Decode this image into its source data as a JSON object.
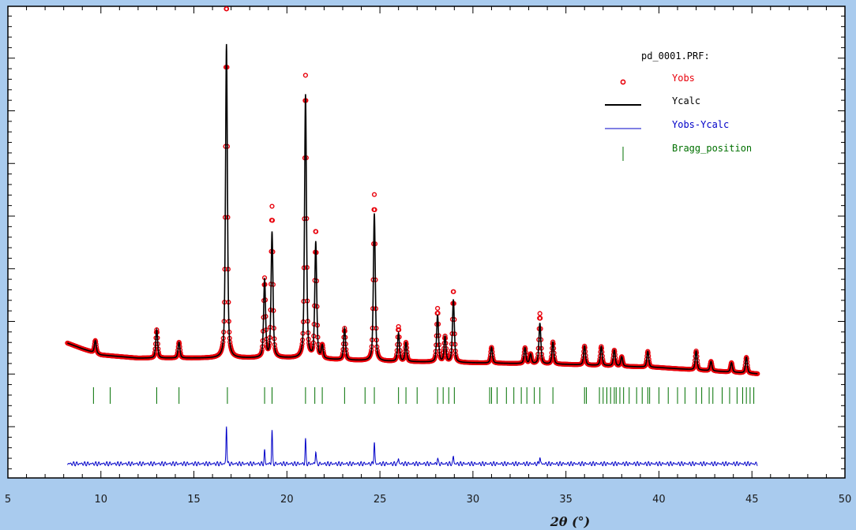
{
  "chart_data": {
    "type": "line",
    "title": "",
    "file_label": "pd_0001.PRF:",
    "xlabel": "2θ (°)",
    "ylabel": "",
    "xlim": [
      5,
      50
    ],
    "x_ticks": [
      "5",
      "10",
      "15",
      "20",
      "25",
      "30",
      "35",
      "40",
      "45",
      "50"
    ],
    "grid": false,
    "legend_placement": "top-right",
    "legend": [
      {
        "key": "obs",
        "label": "Yobs",
        "color": "#e8000b"
      },
      {
        "key": "calc",
        "label": "Ycalc",
        "color": "#000000"
      },
      {
        "key": "diff",
        "label": "Yobs-Ycalc",
        "color": "#0000c8"
      },
      {
        "key": "bragg",
        "label": "Bragg_position",
        "color": "#007000"
      }
    ],
    "background": {
      "start_x": 8.2,
      "end_x": 45.3,
      "points": [
        [
          8.2,
          0.098
        ],
        [
          9.0,
          0.08
        ],
        [
          10.0,
          0.06
        ],
        [
          12.0,
          0.05
        ],
        [
          16.0,
          0.05
        ],
        [
          20.0,
          0.05
        ],
        [
          25.0,
          0.04
        ],
        [
          30.0,
          0.035
        ],
        [
          35.0,
          0.03
        ],
        [
          40.0,
          0.02
        ],
        [
          45.3,
          0.0
        ]
      ]
    },
    "peaks": [
      {
        "x": 9.7,
        "height": 0.04
      },
      {
        "x": 13.0,
        "height": 0.09
      },
      {
        "x": 14.2,
        "height": 0.05
      },
      {
        "x": 16.75,
        "height": 1.0
      },
      {
        "x": 18.8,
        "height": 0.25
      },
      {
        "x": 19.2,
        "height": 0.4
      },
      {
        "x": 21.0,
        "height": 0.84
      },
      {
        "x": 21.55,
        "height": 0.37
      },
      {
        "x": 21.9,
        "height": 0.04
      },
      {
        "x": 23.1,
        "height": 0.1
      },
      {
        "x": 24.7,
        "height": 0.47
      },
      {
        "x": 26.0,
        "height": 0.09
      },
      {
        "x": 26.4,
        "height": 0.06
      },
      {
        "x": 28.1,
        "height": 0.15
      },
      {
        "x": 28.5,
        "height": 0.08
      },
      {
        "x": 28.95,
        "height": 0.2
      },
      {
        "x": 31.0,
        "height": 0.05
      },
      {
        "x": 32.8,
        "height": 0.05
      },
      {
        "x": 33.1,
        "height": 0.03
      },
      {
        "x": 33.6,
        "height": 0.13
      },
      {
        "x": 34.3,
        "height": 0.07
      },
      {
        "x": 36.0,
        "height": 0.06
      },
      {
        "x": 36.9,
        "height": 0.06
      },
      {
        "x": 37.6,
        "height": 0.05
      },
      {
        "x": 38.0,
        "height": 0.03
      },
      {
        "x": 39.4,
        "height": 0.05
      },
      {
        "x": 42.0,
        "height": 0.06
      },
      {
        "x": 42.8,
        "height": 0.03
      },
      {
        "x": 43.9,
        "height": 0.03
      },
      {
        "x": 44.7,
        "height": 0.05
      }
    ],
    "observed_excess": [
      {
        "x": 16.75,
        "extra": 0.14
      },
      {
        "x": 19.2,
        "extra": 0.08
      },
      {
        "x": 21.0,
        "extra": 0.06
      },
      {
        "x": 21.55,
        "extra": 0.04
      },
      {
        "x": 24.7,
        "extra": 0.06
      },
      {
        "x": 26.0,
        "extra": 0.02
      },
      {
        "x": 28.1,
        "extra": 0.02
      },
      {
        "x": 28.95,
        "extra": 0.03
      },
      {
        "x": 33.6,
        "extra": 0.03
      }
    ],
    "bragg_positions": [
      9.6,
      10.5,
      13.0,
      14.2,
      16.8,
      18.8,
      19.2,
      21.0,
      21.5,
      21.9,
      23.1,
      24.2,
      24.7,
      26.0,
      26.4,
      27.0,
      28.1,
      28.4,
      28.7,
      29.0,
      30.9,
      31.0,
      31.3,
      31.8,
      32.2,
      32.6,
      32.9,
      33.3,
      33.6,
      34.3,
      36.0,
      36.1,
      36.8,
      37.0,
      37.2,
      37.4,
      37.6,
      37.7,
      37.9,
      38.1,
      38.4,
      38.8,
      39.1,
      39.4,
      39.5,
      40.0,
      40.5,
      41.0,
      41.4,
      42.0,
      42.3,
      42.7,
      42.9,
      43.4,
      43.8,
      44.2,
      44.5,
      44.7,
      44.9,
      45.1
    ],
    "difference_peaks": [
      {
        "x": 16.75,
        "amp": 0.21
      },
      {
        "x": 18.8,
        "amp": 0.07
      },
      {
        "x": 19.2,
        "amp": 0.18
      },
      {
        "x": 21.0,
        "amp": 0.13
      },
      {
        "x": 21.55,
        "amp": 0.07
      },
      {
        "x": 24.7,
        "amp": 0.12
      },
      {
        "x": 26.0,
        "amp": 0.03
      },
      {
        "x": 28.1,
        "amp": 0.03
      },
      {
        "x": 28.95,
        "amp": 0.04
      },
      {
        "x": 33.6,
        "amp": 0.04
      }
    ]
  }
}
